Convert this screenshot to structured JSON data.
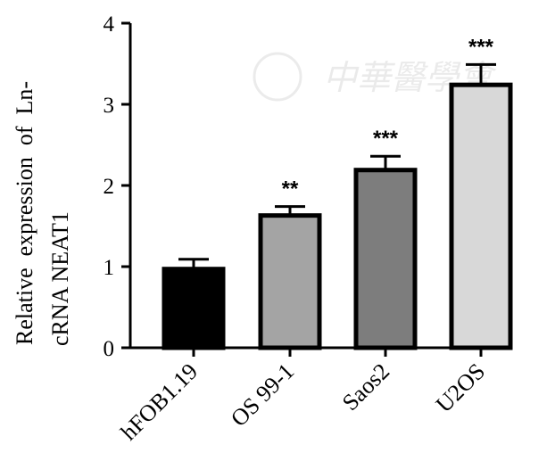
{
  "chart_data": {
    "type": "bar",
    "categories": [
      "hFOB1.19",
      "OS 99-1",
      "Saos2",
      "U2OS"
    ],
    "values": [
      0.97,
      1.63,
      2.19,
      3.24
    ],
    "error_upper": [
      1.09,
      1.74,
      2.36,
      3.49
    ],
    "significance": [
      "",
      "**",
      "***",
      "***"
    ],
    "bar_colors": [
      "#000000",
      "#a4a4a4",
      "#7d7d7d",
      "#d8d8d8"
    ],
    "ylabel_lines": [
      "Relative  expression  of  Ln-",
      "cRNA NEAT1"
    ],
    "xlabel": "",
    "ylim": [
      0,
      4
    ],
    "yticks": [
      "0",
      "1",
      "2",
      "3",
      "4"
    ],
    "grid": false,
    "watermark": "中華醫學會"
  }
}
